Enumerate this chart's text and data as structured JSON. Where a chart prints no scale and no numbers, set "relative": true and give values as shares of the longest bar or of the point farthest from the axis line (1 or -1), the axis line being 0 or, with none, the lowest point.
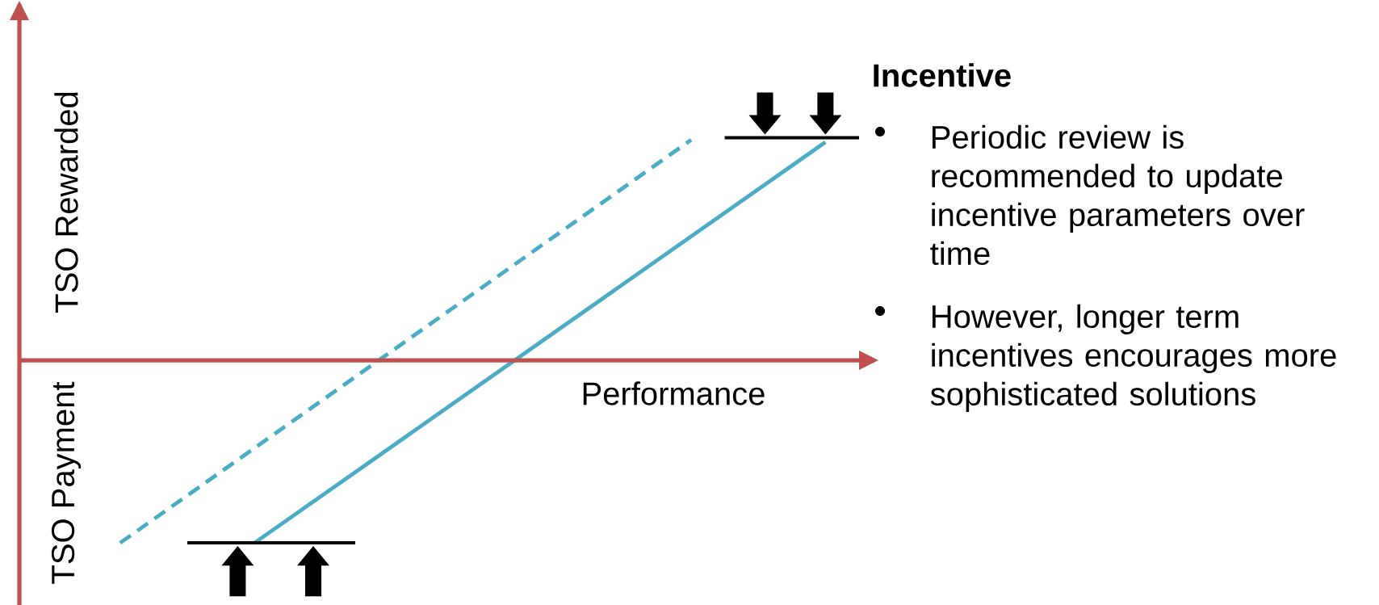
{
  "chart_data": {
    "type": "line",
    "relative": true,
    "xlabel": "Performance",
    "categories": [
      null,
      null,
      null,
      null,
      null,
      null,
      null,
      null,
      null,
      null,
      null,
      null,
      null,
      null,
      null,
      null,
      null,
      null,
      null,
      null,
      null,
      null,
      null,
      null,
      null,
      null
    ],
    "series": [
      {
        "color": "#4bacc6",
        "line_style": "solid",
        "values": [
          null,
          null,
          null,
          null,
          null,
          null,
          null,
          -0.82,
          null,
          null,
          null,
          null,
          null,
          null,
          null,
          null,
          null,
          null,
          null,
          null,
          null,
          null,
          null,
          null,
          0.98,
          null
        ]
      },
      {
        "color": "#4bacc6",
        "line_style": "dashed",
        "values": [
          null,
          null,
          null,
          -0.82,
          null,
          null,
          null,
          null,
          null,
          null,
          null,
          null,
          null,
          null,
          null,
          null,
          null,
          null,
          null,
          null,
          0.99,
          null,
          null,
          null,
          null,
          null
        ]
      },
      {
        "color": "#000000",
        "line_style": "solid",
        "values": [
          null,
          null,
          null,
          null,
          null,
          null,
          null,
          null,
          null,
          null,
          null,
          null,
          null,
          null,
          null,
          null,
          null,
          null,
          null,
          null,
          null,
          1.0,
          null,
          null,
          null,
          1.0
        ]
      },
      {
        "color": "#000000",
        "line_style": "solid",
        "values": [
          null,
          null,
          null,
          null,
          null,
          -0.82,
          null,
          null,
          null,
          null,
          -0.82,
          null,
          null,
          null,
          null,
          null,
          null,
          null,
          null,
          null,
          null,
          null,
          null,
          null,
          null,
          null
        ]
      }
    ],
    "ref_lines": [
      {
        "axis": "y",
        "value": 0,
        "color": "#c0504d"
      }
    ],
    "annotations": [
      "TSO Rewarded",
      "TSO Payment",
      "Incentive",
      "Periodic review is recommended to update incentive parameters over time",
      "However, longer term incentives encourages more sophisticated solutions"
    ]
  }
}
